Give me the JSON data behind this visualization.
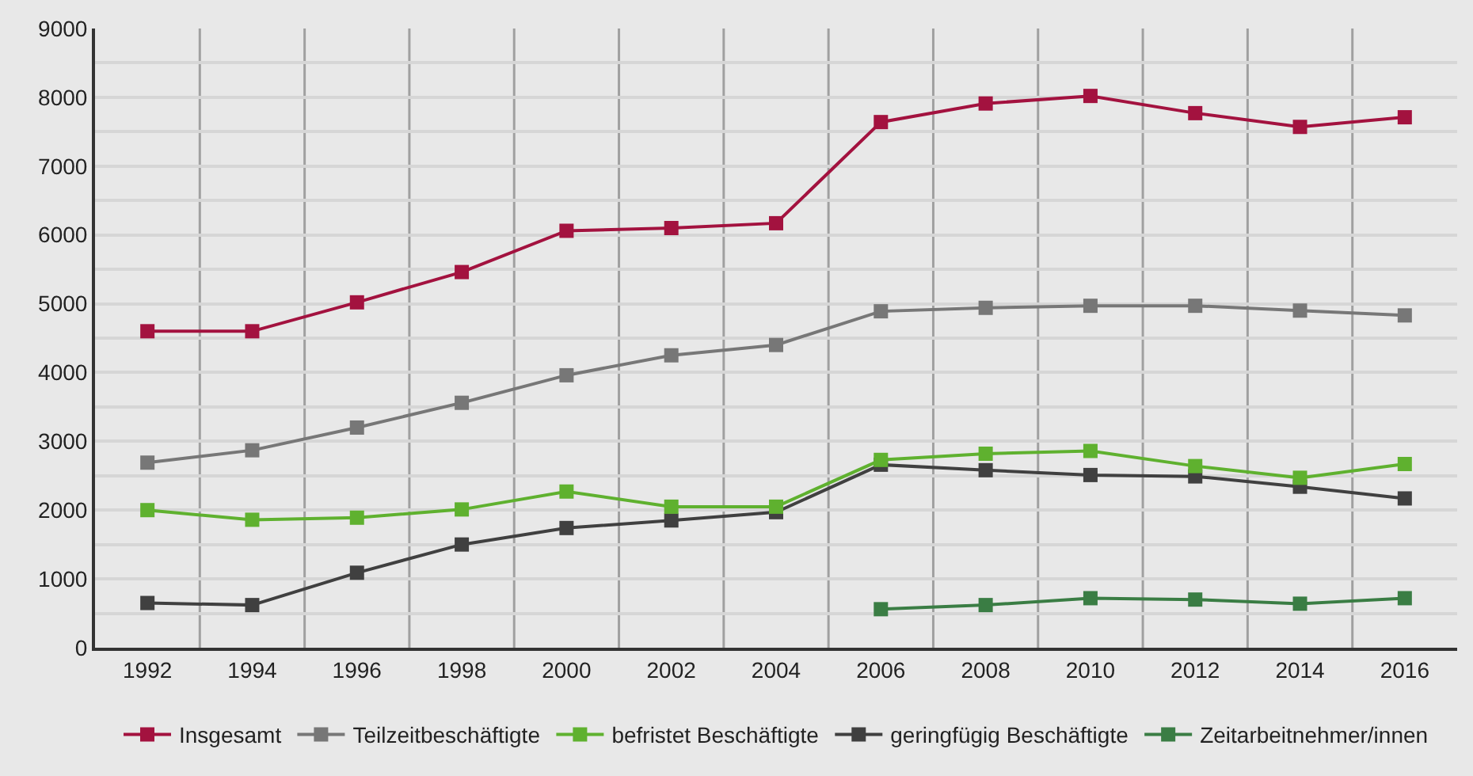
{
  "chart_data": {
    "type": "line",
    "categories": [
      "1992",
      "1994",
      "1996",
      "1998",
      "2000",
      "2002",
      "2004",
      "2006",
      "2008",
      "2010",
      "2012",
      "2014",
      "2016"
    ],
    "ylim": [
      0,
      9000
    ],
    "yticks": [
      0,
      1000,
      2000,
      3000,
      4000,
      5000,
      6000,
      7000,
      8000,
      9000
    ],
    "grid": true,
    "legend": "bottom",
    "marker": "square",
    "line_style": "solid",
    "series": [
      {
        "name": "Insgesamt",
        "color": "#a3123f",
        "values": [
          4600,
          4600,
          5020,
          5460,
          6060,
          6100,
          6170,
          7640,
          7910,
          8020,
          7770,
          7570,
          7710
        ]
      },
      {
        "name": "Teilzeitbeschäftigte",
        "color": "#777777",
        "values": [
          2690,
          2870,
          3200,
          3560,
          3960,
          4250,
          4400,
          4890,
          4940,
          4970,
          4970,
          4900,
          4830
        ]
      },
      {
        "name": "befristet Beschäftigte",
        "color": "#5fb12f",
        "values": [
          2000,
          1860,
          1890,
          2010,
          2270,
          2050,
          2050,
          2730,
          2820,
          2860,
          2640,
          2470,
          2670
        ]
      },
      {
        "name": "geringfügig Beschäftigte",
        "color": "#404040",
        "values": [
          650,
          620,
          1090,
          1500,
          1740,
          1850,
          1970,
          2660,
          2580,
          2510,
          2490,
          2340,
          2170
        ]
      },
      {
        "name": "Zeitarbeitnehmer/innen",
        "color": "#3a7d44",
        "values": [
          null,
          null,
          null,
          null,
          null,
          null,
          null,
          560,
          620,
          720,
          700,
          640,
          720
        ]
      }
    ]
  }
}
